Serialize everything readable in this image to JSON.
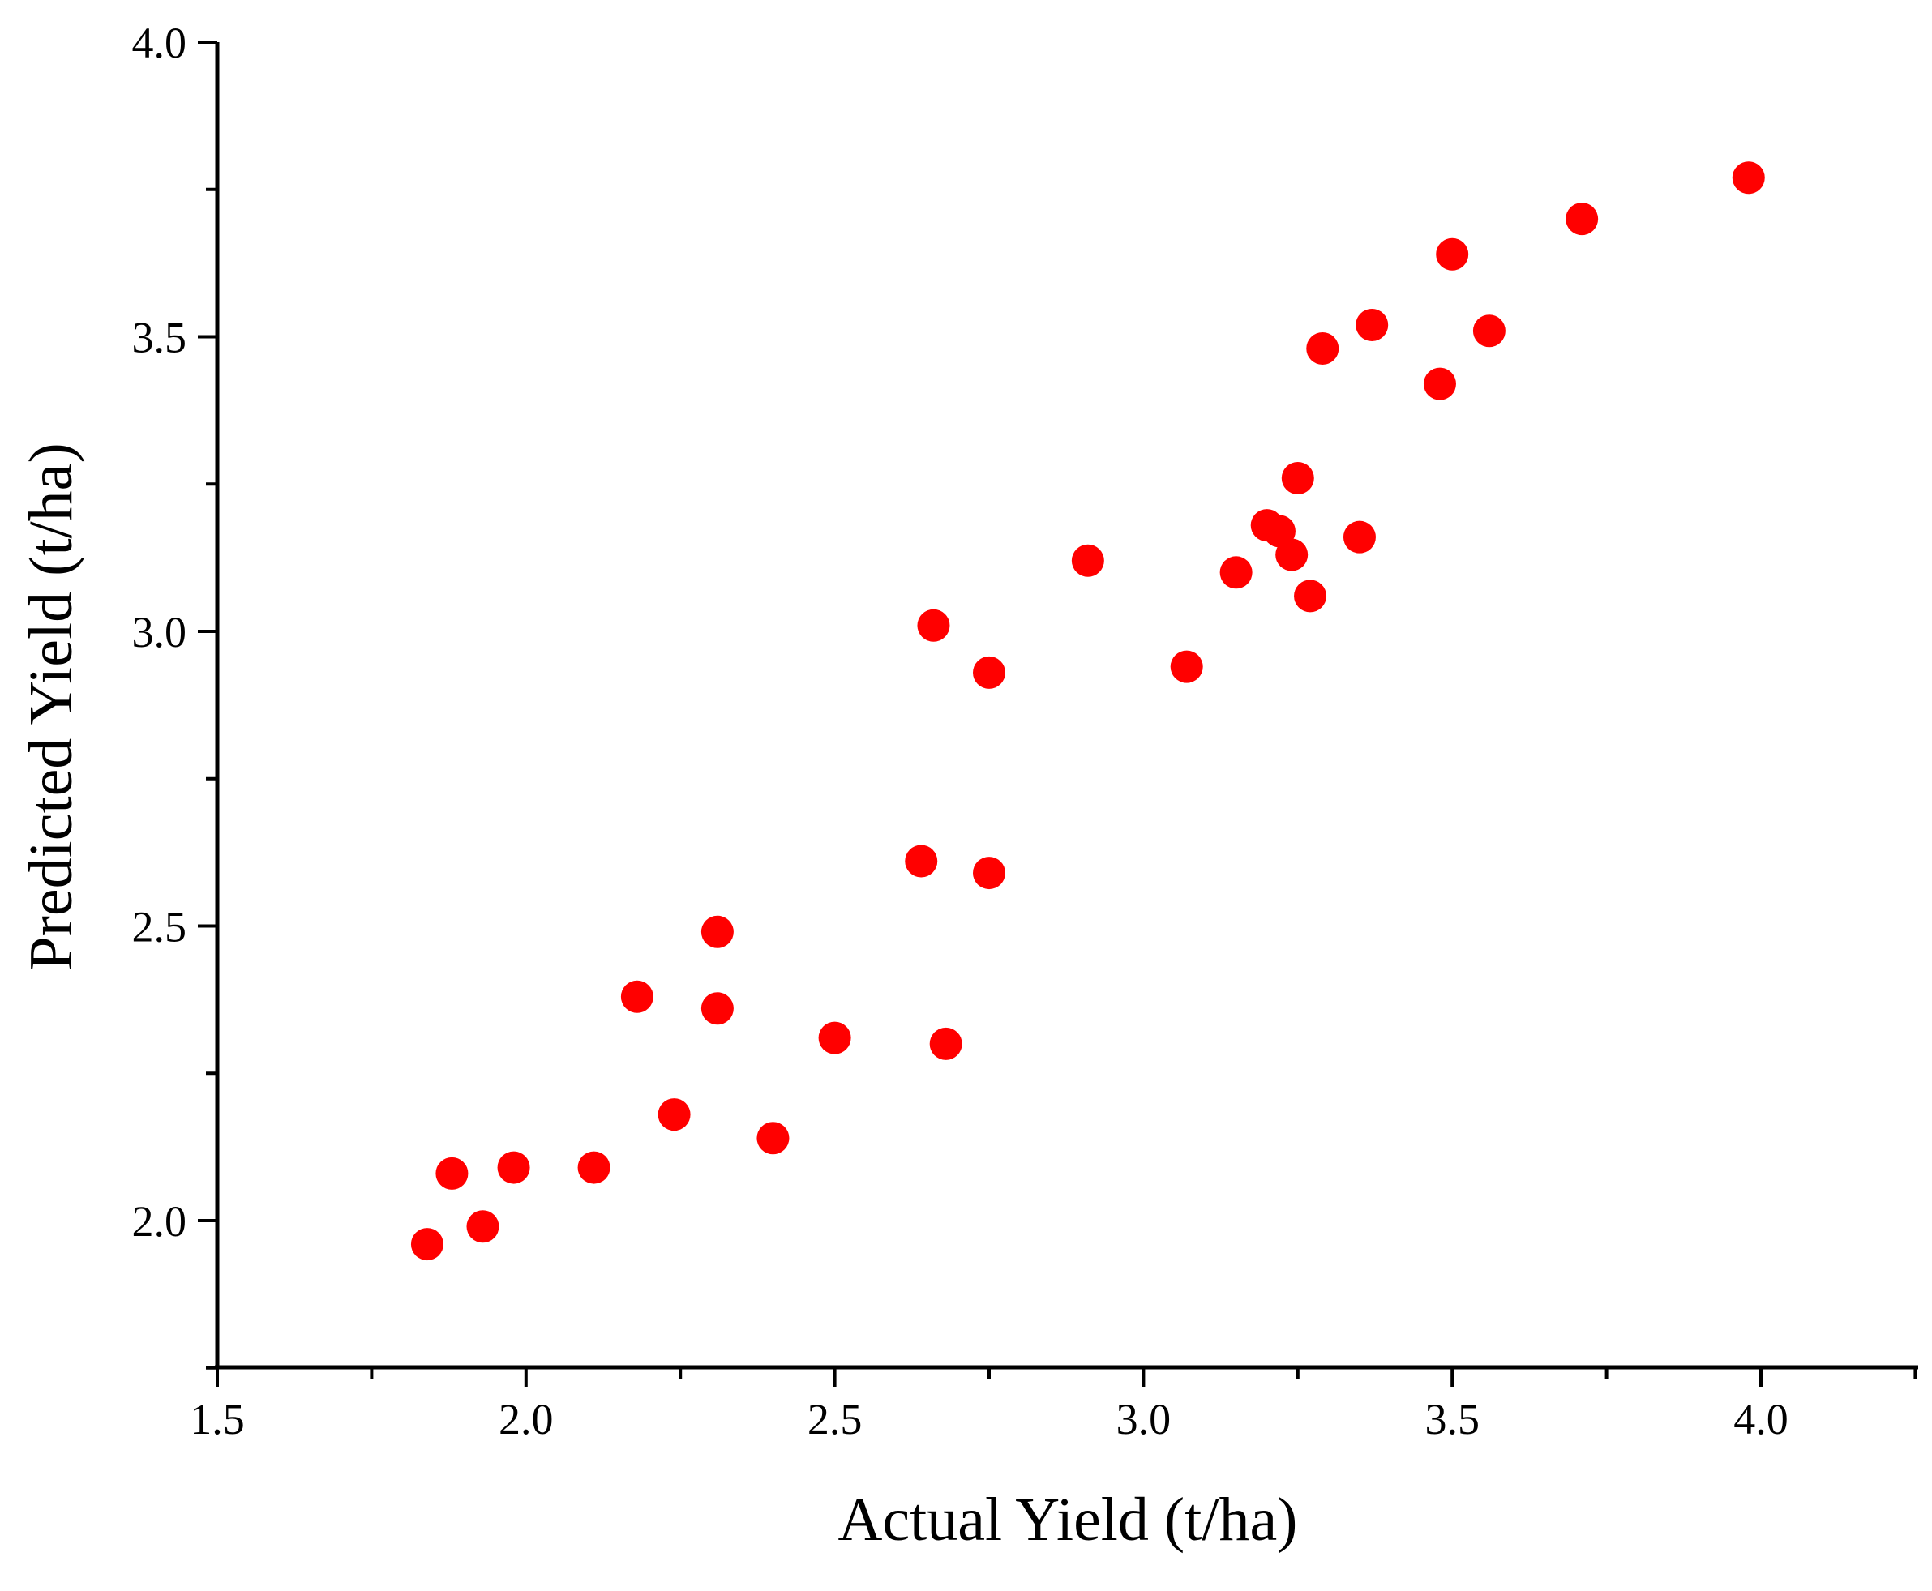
{
  "chart_data": {
    "type": "scatter",
    "title": "",
    "xlabel": "Actual Yield (t/ha)",
    "ylabel": "Predicted Yield (t/ha)",
    "xlim": [
      1.5,
      4.25
    ],
    "ylim": [
      1.75,
      4.0
    ],
    "x_ticks": [
      "1.5",
      "2.0",
      "2.5",
      "3.0",
      "3.5",
      "4.0"
    ],
    "y_ticks": [
      "2.0",
      "2.5",
      "3.0",
      "3.5",
      "4.0"
    ],
    "marker_color": "#ff0000",
    "grid": false,
    "points": [
      {
        "x": 1.84,
        "y": 1.96
      },
      {
        "x": 1.88,
        "y": 2.08
      },
      {
        "x": 1.93,
        "y": 1.99
      },
      {
        "x": 1.98,
        "y": 2.09
      },
      {
        "x": 2.11,
        "y": 2.09
      },
      {
        "x": 2.18,
        "y": 2.38
      },
      {
        "x": 2.24,
        "y": 2.18
      },
      {
        "x": 2.31,
        "y": 2.49
      },
      {
        "x": 2.31,
        "y": 2.36
      },
      {
        "x": 2.4,
        "y": 2.14
      },
      {
        "x": 2.5,
        "y": 2.31
      },
      {
        "x": 2.64,
        "y": 2.61
      },
      {
        "x": 2.66,
        "y": 3.01
      },
      {
        "x": 2.68,
        "y": 2.3
      },
      {
        "x": 2.75,
        "y": 2.93
      },
      {
        "x": 2.75,
        "y": 2.59
      },
      {
        "x": 2.91,
        "y": 3.12
      },
      {
        "x": 3.07,
        "y": 2.94
      },
      {
        "x": 3.15,
        "y": 3.1
      },
      {
        "x": 3.2,
        "y": 3.18
      },
      {
        "x": 3.22,
        "y": 3.17
      },
      {
        "x": 3.24,
        "y": 3.13
      },
      {
        "x": 3.25,
        "y": 3.26
      },
      {
        "x": 3.27,
        "y": 3.06
      },
      {
        "x": 3.29,
        "y": 3.48
      },
      {
        "x": 3.35,
        "y": 3.16
      },
      {
        "x": 3.37,
        "y": 3.52
      },
      {
        "x": 3.48,
        "y": 3.42
      },
      {
        "x": 3.5,
        "y": 3.64
      },
      {
        "x": 3.56,
        "y": 3.51
      },
      {
        "x": 3.71,
        "y": 3.7
      },
      {
        "x": 3.98,
        "y": 3.77
      }
    ]
  }
}
